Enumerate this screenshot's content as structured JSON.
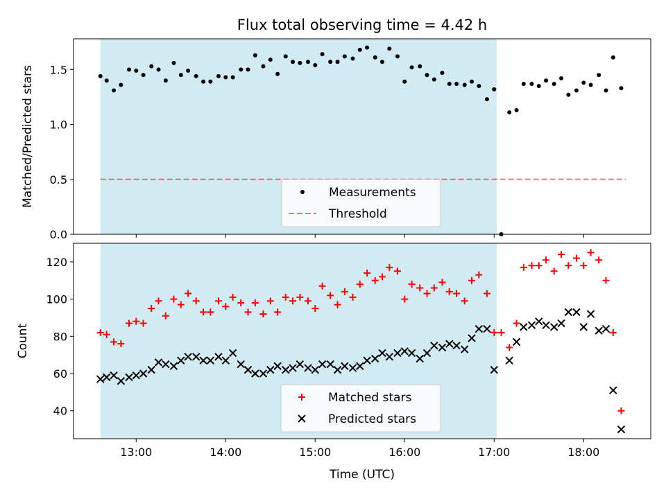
{
  "title": "Flux total observing time = 4.42 h",
  "colors": {
    "shade": "#add8e6",
    "measurement": "#000000",
    "threshold": "#ff0000",
    "matched": "#ff0000",
    "predicted": "#000000"
  },
  "chart_data": [
    {
      "type": "scatter",
      "ylabel": "Matched/Predicted stars",
      "xlim": [
        12.3,
        18.75
      ],
      "ylim": [
        0.0,
        1.78
      ],
      "yticks": [
        0.0,
        0.5,
        1.0,
        1.5
      ],
      "ytick_labels": [
        "0.0",
        "0.5",
        "1.0",
        "1.5"
      ],
      "shaded_interval": [
        12.6,
        17.03
      ],
      "threshold": {
        "name": "Threshold",
        "value": 0.5,
        "x_range": [
          12.6,
          18.47
        ]
      },
      "legend": {
        "position": "lower center",
        "entries": [
          "Measurements",
          "Threshold"
        ]
      },
      "series": [
        {
          "name": "Measurements",
          "marker": "dot",
          "x": [
            12.6,
            12.67,
            12.75,
            12.83,
            12.92,
            13.0,
            13.08,
            13.17,
            13.25,
            13.33,
            13.42,
            13.5,
            13.58,
            13.67,
            13.75,
            13.83,
            13.92,
            14.0,
            14.08,
            14.17,
            14.25,
            14.33,
            14.42,
            14.5,
            14.58,
            14.67,
            14.75,
            14.83,
            14.92,
            15.0,
            15.08,
            15.17,
            15.25,
            15.33,
            15.42,
            15.5,
            15.58,
            15.67,
            15.75,
            15.83,
            15.92,
            16.0,
            16.08,
            16.17,
            16.25,
            16.33,
            16.42,
            16.5,
            16.58,
            16.67,
            16.75,
            16.83,
            16.92,
            17.0,
            17.08,
            17.17,
            17.25,
            17.33,
            17.42,
            17.5,
            17.58,
            17.67,
            17.75,
            17.83,
            17.92,
            18.0,
            18.08,
            18.17,
            18.25,
            18.33,
            18.42
          ],
          "y": [
            1.44,
            1.4,
            1.31,
            1.36,
            1.5,
            1.49,
            1.45,
            1.53,
            1.5,
            1.4,
            1.56,
            1.45,
            1.49,
            1.44,
            1.39,
            1.39,
            1.44,
            1.43,
            1.43,
            1.5,
            1.5,
            1.63,
            1.53,
            1.59,
            1.46,
            1.62,
            1.57,
            1.56,
            1.57,
            1.54,
            1.64,
            1.57,
            1.57,
            1.62,
            1.6,
            1.68,
            1.7,
            1.61,
            1.57,
            1.69,
            1.62,
            1.39,
            1.52,
            1.53,
            1.45,
            1.41,
            1.47,
            1.37,
            1.37,
            1.36,
            1.39,
            1.35,
            1.23,
            1.32,
            0.0,
            1.11,
            1.13,
            1.37,
            1.37,
            1.35,
            1.4,
            1.37,
            1.42,
            1.27,
            1.31,
            1.38,
            1.36,
            1.45,
            1.31,
            1.61,
            1.33
          ]
        }
      ]
    },
    {
      "type": "scatter",
      "ylabel": "Count",
      "xlabel": "Time (UTC)",
      "xlim": [
        12.3,
        18.75
      ],
      "ylim": [
        25,
        130
      ],
      "yticks": [
        40,
        60,
        80,
        100,
        120
      ],
      "ytick_labels": [
        "40",
        "60",
        "80",
        "100",
        "120"
      ],
      "xticks": [
        13,
        14,
        15,
        16,
        17,
        18
      ],
      "xtick_labels": [
        "13:00",
        "14:00",
        "15:00",
        "16:00",
        "17:00",
        "18:00"
      ],
      "shaded_interval": [
        12.6,
        17.03
      ],
      "legend": {
        "position": "lower center",
        "entries": [
          "Matched stars",
          "Predicted stars"
        ]
      },
      "series": [
        {
          "name": "Matched stars",
          "marker": "plus",
          "x": [
            12.6,
            12.67,
            12.75,
            12.83,
            12.92,
            13.0,
            13.08,
            13.17,
            13.25,
            13.33,
            13.42,
            13.5,
            13.58,
            13.67,
            13.75,
            13.83,
            13.92,
            14.0,
            14.08,
            14.17,
            14.25,
            14.33,
            14.42,
            14.5,
            14.58,
            14.67,
            14.75,
            14.83,
            14.92,
            15.0,
            15.08,
            15.17,
            15.25,
            15.33,
            15.42,
            15.5,
            15.58,
            15.67,
            15.75,
            15.83,
            15.92,
            16.0,
            16.08,
            16.17,
            16.25,
            16.33,
            16.42,
            16.5,
            16.58,
            16.67,
            16.75,
            16.83,
            16.92,
            17.0,
            17.08,
            17.17,
            17.25,
            17.33,
            17.42,
            17.5,
            17.58,
            17.67,
            17.75,
            17.83,
            17.92,
            18.0,
            18.08,
            18.17,
            18.25,
            18.33,
            18.42
          ],
          "y": [
            82,
            81,
            77,
            76,
            87,
            88,
            87,
            95,
            99,
            91,
            100,
            97,
            103,
            99,
            93,
            93,
            99,
            96,
            101,
            98,
            93,
            98,
            92,
            99,
            93,
            101,
            99,
            101,
            99,
            95,
            107,
            102,
            97,
            104,
            101,
            108,
            114,
            110,
            112,
            117,
            115,
            100,
            108,
            106,
            103,
            106,
            109,
            104,
            103,
            99,
            110,
            113,
            103,
            82,
            82,
            74,
            87,
            117,
            118,
            118,
            121,
            115,
            124,
            118,
            122,
            118,
            125,
            121,
            110,
            82,
            40
          ]
        },
        {
          "name": "Predicted stars",
          "marker": "x",
          "x": [
            12.6,
            12.67,
            12.75,
            12.83,
            12.92,
            13.0,
            13.08,
            13.17,
            13.25,
            13.33,
            13.42,
            13.5,
            13.58,
            13.67,
            13.75,
            13.83,
            13.92,
            14.0,
            14.08,
            14.17,
            14.25,
            14.33,
            14.42,
            14.5,
            14.58,
            14.67,
            14.75,
            14.83,
            14.92,
            15.0,
            15.08,
            15.17,
            15.25,
            15.33,
            15.42,
            15.5,
            15.58,
            15.67,
            15.75,
            15.83,
            15.92,
            16.0,
            16.08,
            16.17,
            16.25,
            16.33,
            16.42,
            16.5,
            16.58,
            16.67,
            16.75,
            16.83,
            16.92,
            17.0,
            17.08,
            17.17,
            17.25,
            17.33,
            17.42,
            17.5,
            17.58,
            17.67,
            17.75,
            17.83,
            17.92,
            18.0,
            18.08,
            18.17,
            18.25,
            18.33,
            18.42
          ],
          "y": [
            57,
            58,
            59,
            56,
            58,
            59,
            60,
            62,
            66,
            65,
            64,
            67,
            69,
            69,
            67,
            67,
            69,
            67,
            71,
            65,
            62,
            60,
            60,
            62,
            64,
            62,
            63,
            65,
            63,
            62,
            65,
            65,
            62,
            64,
            63,
            64,
            67,
            68,
            71,
            69,
            71,
            72,
            71,
            68,
            71,
            75,
            74,
            76,
            75,
            73,
            79,
            84,
            84,
            62,
            null,
            67,
            77,
            85,
            86,
            88,
            86,
            85,
            87,
            93,
            93,
            85,
            92,
            83,
            84,
            51,
            30
          ]
        }
      ]
    }
  ]
}
